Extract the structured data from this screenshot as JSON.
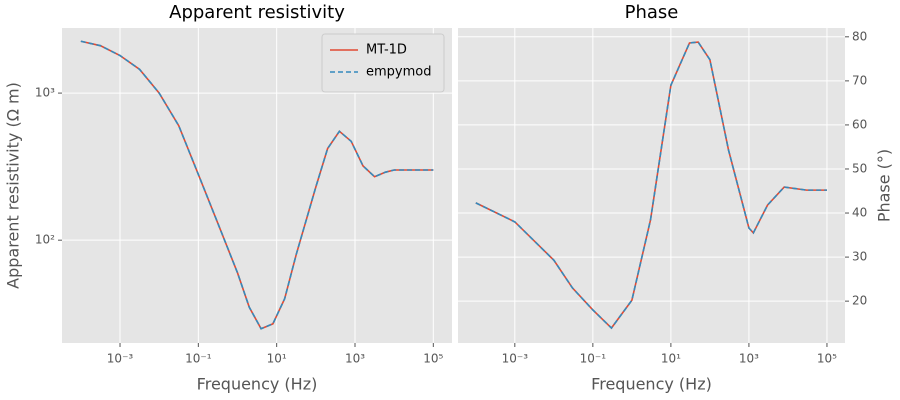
{
  "chart_data": [
    {
      "type": "line",
      "title": "Apparent resistivity",
      "xlabel": "Frequency (Hz)",
      "ylabel": "Apparent resistivity (Ω m)",
      "xscale": "log",
      "yscale": "log",
      "grid": true,
      "legend": "upper right",
      "yaxis_side": "left",
      "xlim": [
        3.3e-05,
        300000.0
      ],
      "ylim": [
        20,
        2770
      ],
      "xticks": [
        {
          "value": 0.001,
          "label": "10⁻³"
        },
        {
          "value": 0.1,
          "label": "10⁻¹"
        },
        {
          "value": 10,
          "label": "10¹"
        },
        {
          "value": 1000,
          "label": "10³"
        },
        {
          "value": 100000,
          "label": "10⁵"
        }
      ],
      "yticks": [
        {
          "value": 100,
          "label": "10²"
        },
        {
          "value": 1000,
          "label": "10³"
        }
      ],
      "x": [
        0.0001,
        0.000316,
        0.001,
        0.00316,
        0.01,
        0.0316,
        0.1,
        0.316,
        1,
        2,
        4,
        8,
        16,
        31.6,
        100,
        200,
        400,
        800,
        1600,
        3160,
        6000,
        10000,
        30000,
        100000
      ],
      "series": [
        {
          "name": "MT-1D",
          "color": "#e24a33",
          "dashed": false,
          "values": [
            2250,
            2100,
            1800,
            1450,
            1000,
            600,
            280,
            130,
            60,
            35,
            25,
            27,
            40,
            80,
            230,
            420,
            550,
            470,
            320,
            270,
            290,
            300,
            300,
            300
          ]
        },
        {
          "name": "empymod",
          "color": "#348abd",
          "dashed": true,
          "values": [
            2250,
            2100,
            1800,
            1450,
            1000,
            600,
            280,
            130,
            60,
            35,
            25,
            27,
            40,
            80,
            230,
            420,
            550,
            470,
            320,
            270,
            290,
            300,
            300,
            300
          ]
        }
      ]
    },
    {
      "type": "line",
      "title": "Phase",
      "xlabel": "Frequency (Hz)",
      "ylabel": "Phase (°)",
      "xscale": "log",
      "yscale": "linear",
      "grid": true,
      "yaxis_side": "right",
      "xlim": [
        3.5e-05,
        290000.0
      ],
      "ylim": [
        10.5,
        82
      ],
      "xticks": [
        {
          "value": 0.001,
          "label": "10⁻³"
        },
        {
          "value": 0.1,
          "label": "10⁻¹"
        },
        {
          "value": 10,
          "label": "10¹"
        },
        {
          "value": 1000,
          "label": "10³"
        },
        {
          "value": 100000,
          "label": "10⁵"
        }
      ],
      "yticks": [
        20,
        30,
        40,
        50,
        60,
        70,
        80
      ],
      "x": [
        0.0001,
        0.001,
        0.01,
        0.03,
        0.1,
        0.3,
        1,
        3,
        10,
        30,
        50,
        100,
        300,
        1000,
        1300,
        3000,
        8000,
        30000,
        100000
      ],
      "series": [
        {
          "color": "#e24a33",
          "dashed": false,
          "values": [
            42.3,
            38,
            29.3,
            23,
            18,
            13.9,
            20.2,
            38.4,
            69,
            78.6,
            78.8,
            74.8,
            54.3,
            36.6,
            35.5,
            41.8,
            45.9,
            45.2,
            45.2
          ]
        },
        {
          "color": "#348abd",
          "dashed": true,
          "values": [
            42.3,
            38,
            29.3,
            23,
            18,
            13.9,
            20.2,
            38.4,
            69,
            78.6,
            78.8,
            74.8,
            54.3,
            36.6,
            35.5,
            41.8,
            45.9,
            45.2,
            45.2
          ]
        }
      ]
    }
  ]
}
